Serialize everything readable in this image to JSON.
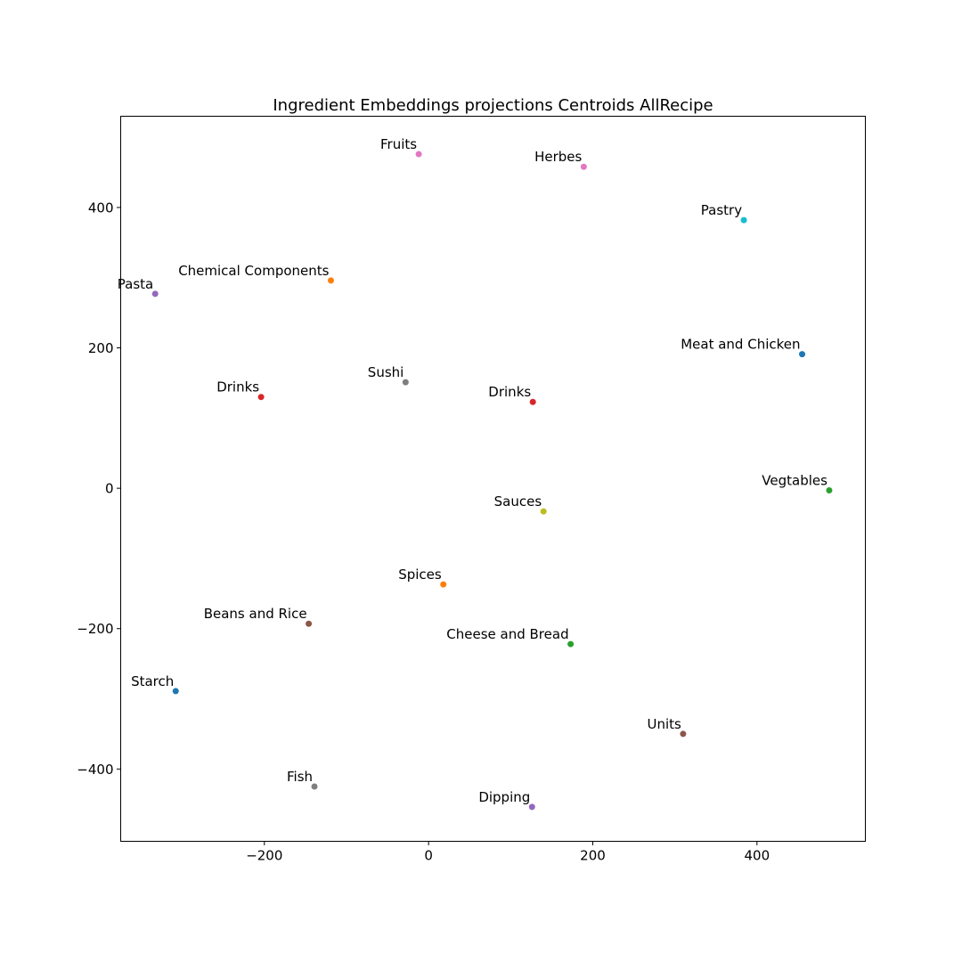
{
  "chart_data": {
    "type": "scatter",
    "title": "Ingredient Embeddings projections  Centroids AllRecipe",
    "xlabel": "",
    "ylabel": "",
    "xlim": [
      -375,
      532
    ],
    "ylim": [
      -503,
      530
    ],
    "xticks": [
      -200,
      0,
      200,
      400
    ],
    "yticks": [
      -400,
      -200,
      0,
      200,
      400
    ],
    "xtick_labels": [
      "−200",
      "0",
      "200",
      "400"
    ],
    "ytick_labels": [
      "−400",
      "−200",
      "0",
      "200",
      "400"
    ],
    "grid": false,
    "points": [
      {
        "label": "Fruits",
        "x": -12,
        "y": 476,
        "color": "#e377c2"
      },
      {
        "label": "Herbes",
        "x": 189,
        "y": 458,
        "color": "#e377c2"
      },
      {
        "label": "Pastry",
        "x": 384,
        "y": 382,
        "color": "#17becf"
      },
      {
        "label": "Chemical Components",
        "x": -119,
        "y": 296,
        "color": "#ff7f0e"
      },
      {
        "label": "Pasta",
        "x": -333,
        "y": 277,
        "color": "#9467bd"
      },
      {
        "label": "Meat and Chicken",
        "x": 455,
        "y": 191,
        "color": "#1f77b4"
      },
      {
        "label": "Sushi",
        "x": -28,
        "y": 151,
        "color": "#7f7f7f"
      },
      {
        "label": "Drinks",
        "x": -204,
        "y": 130,
        "color": "#d62728"
      },
      {
        "label": "Drinks",
        "x": 127,
        "y": 123,
        "color": "#d62728"
      },
      {
        "label": "Vegtables",
        "x": 488,
        "y": -3,
        "color": "#2ca02c"
      },
      {
        "label": "Sauces",
        "x": 140,
        "y": -33,
        "color": "#bcbd22"
      },
      {
        "label": "Spices",
        "x": 18,
        "y": -137,
        "color": "#ff7f0e"
      },
      {
        "label": "Beans and Rice",
        "x": -146,
        "y": -193,
        "color": "#8c564b"
      },
      {
        "label": "Cheese and Bread",
        "x": 173,
        "y": -222,
        "color": "#2ca02c"
      },
      {
        "label": "Starch",
        "x": -308,
        "y": -289,
        "color": "#1f77b4"
      },
      {
        "label": "Units",
        "x": 310,
        "y": -350,
        "color": "#8c564b"
      },
      {
        "label": "Fish",
        "x": -139,
        "y": -425,
        "color": "#7f7f7f"
      },
      {
        "label": "Dipping",
        "x": 126,
        "y": -454,
        "color": "#9467bd"
      }
    ]
  }
}
